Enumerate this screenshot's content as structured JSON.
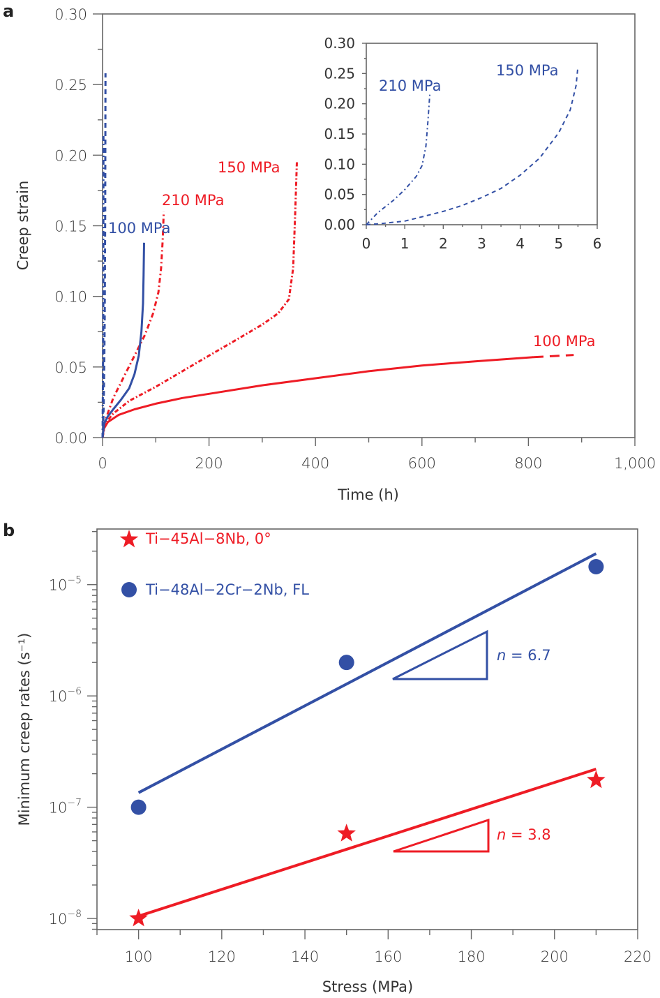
{
  "colors": {
    "red": "#ee1c25",
    "blue": "#3350a5",
    "axis": "#666666",
    "text": "#333333"
  },
  "chart_data": [
    {
      "id": "a",
      "panel_label": "a",
      "type": "line",
      "xlabel": "Time (h)",
      "ylabel": "Creep strain",
      "xlim": [
        0,
        1000
      ],
      "ylim": [
        0,
        0.3
      ],
      "xticks": [
        0,
        200,
        400,
        600,
        800,
        1000
      ],
      "xtick_labels": [
        "0",
        "200",
        "400",
        "600",
        "800",
        "1,000"
      ],
      "yticks": [
        0.0,
        0.05,
        0.1,
        0.15,
        0.2,
        0.25,
        0.3
      ],
      "ytick_labels": [
        "0.00",
        "0.05",
        "0.10",
        "0.15",
        "0.20",
        "0.25",
        "0.30"
      ],
      "grid": false,
      "series": [
        {
          "name": "Ti-45Al-8Nb 100 MPa",
          "label": "100 MPa",
          "color": "red",
          "style": "solid",
          "x": [
            0,
            2,
            10,
            30,
            60,
            100,
            150,
            200,
            300,
            400,
            500,
            600,
            700,
            810
          ],
          "y": [
            0,
            0.006,
            0.011,
            0.016,
            0.02,
            0.024,
            0.028,
            0.031,
            0.037,
            0.042,
            0.047,
            0.051,
            0.054,
            0.057
          ],
          "extrapolated": {
            "x": [
              810,
              885
            ],
            "y": [
              0.057,
              0.0585
            ],
            "style": "dashed"
          }
        },
        {
          "name": "Ti-45Al-8Nb 150 MPa",
          "label": "150 MPa",
          "color": "red",
          "style": "dashed-noisy",
          "x": [
            0,
            5,
            20,
            50,
            100,
            150,
            200,
            250,
            300,
            330,
            350,
            358,
            362,
            365
          ],
          "y": [
            0,
            0.01,
            0.017,
            0.026,
            0.036,
            0.047,
            0.058,
            0.069,
            0.08,
            0.088,
            0.098,
            0.12,
            0.16,
            0.195
          ]
        },
        {
          "name": "Ti-45Al-8Nb 210 MPa",
          "label": "210 MPa",
          "color": "red",
          "style": "dashdot",
          "x": [
            0,
            5,
            20,
            40,
            60,
            80,
            95,
            105,
            110,
            113,
            115
          ],
          "y": [
            0,
            0.012,
            0.028,
            0.043,
            0.058,
            0.073,
            0.088,
            0.103,
            0.12,
            0.14,
            0.16
          ]
        },
        {
          "name": "Ti-48Al-2Cr-2Nb 100 MPa",
          "label": "100 MPa",
          "color": "blue",
          "style": "solid",
          "x": [
            0,
            3,
            10,
            20,
            35,
            50,
            60,
            68,
            73,
            76,
            77,
            78
          ],
          "y": [
            0,
            0.01,
            0.015,
            0.02,
            0.027,
            0.035,
            0.045,
            0.058,
            0.075,
            0.095,
            0.115,
            0.138
          ]
        },
        {
          "name": "Ti-48Al-2Cr-2Nb 150 MPa",
          "label": "150 MPa",
          "color": "blue",
          "style": "dashed",
          "x": [
            0,
            1,
            2,
            3,
            4,
            5,
            5.5
          ],
          "y": [
            0,
            0.005,
            0.02,
            0.045,
            0.085,
            0.16,
            0.258
          ]
        },
        {
          "name": "Ti-48Al-2Cr-2Nb 210 MPa",
          "label": "210 MPa",
          "color": "blue",
          "style": "dashdot",
          "x": [
            0,
            0.5,
            1.0,
            1.4,
            1.55,
            1.65
          ],
          "y": [
            0,
            0.03,
            0.06,
            0.095,
            0.15,
            0.215
          ]
        }
      ],
      "annotations": [
        {
          "text": "150 MPa",
          "color": "red",
          "series": "Ti-45Al-8Nb 150 MPa"
        },
        {
          "text": "210 MPa",
          "color": "red",
          "series": "Ti-45Al-8Nb 210 MPa"
        },
        {
          "text": "100 MPa",
          "color": "blue",
          "series": "Ti-48Al-2Cr-2Nb 100 MPa"
        },
        {
          "text": "100 MPa",
          "color": "red",
          "series": "Ti-45Al-8Nb 100 MPa"
        }
      ],
      "inset": {
        "type": "line",
        "xlim": [
          0,
          6
        ],
        "ylim": [
          0,
          0.3
        ],
        "xticks": [
          0,
          1,
          2,
          3,
          4,
          5,
          6
        ],
        "xtick_labels": [
          "0",
          "1",
          "2",
          "3",
          "4",
          "5",
          "6"
        ],
        "yticks": [
          0.0,
          0.05,
          0.1,
          0.15,
          0.2,
          0.25,
          0.3
        ],
        "ytick_labels": [
          "0.00",
          "0.05",
          "0.10",
          "0.15",
          "0.20",
          "0.25",
          "0.30"
        ],
        "series": [
          {
            "name": "Ti-48Al-2Cr-2Nb 210 MPa",
            "label": "210 MPa",
            "color": "blue",
            "style": "dashdot",
            "x": [
              0,
              0.3,
              0.7,
              1.0,
              1.3,
              1.45,
              1.55,
              1.6,
              1.65
            ],
            "y": [
              0,
              0.02,
              0.04,
              0.058,
              0.08,
              0.098,
              0.13,
              0.17,
              0.215
            ]
          },
          {
            "name": "Ti-48Al-2Cr-2Nb 150 MPa",
            "label": "150 MPa",
            "color": "blue",
            "style": "dashed",
            "x": [
              0,
              0.4,
              1.0,
              1.5,
              2.0,
              2.5,
              3.0,
              3.5,
              4.0,
              4.5,
              5.0,
              5.3,
              5.45,
              5.5
            ],
            "y": [
              0,
              0.002,
              0.006,
              0.014,
              0.022,
              0.032,
              0.045,
              0.06,
              0.082,
              0.11,
              0.152,
              0.19,
              0.23,
              0.262
            ]
          }
        ]
      }
    },
    {
      "id": "b",
      "panel_label": "b",
      "type": "scatter",
      "xlabel": "Stress (MPa)",
      "ylabel": "Minimum creep rates (s⁻¹)",
      "xlim": [
        90,
        220
      ],
      "ylim_log10": [
        -8.1,
        -4.5
      ],
      "yscale": "log",
      "xticks": [
        100,
        120,
        140,
        160,
        180,
        200,
        220
      ],
      "xtick_labels": [
        "100",
        "120",
        "140",
        "160",
        "180",
        "200",
        "220"
      ],
      "yticks_log10": [
        -8,
        -7,
        -6,
        -5
      ],
      "ytick_bases": [
        "10",
        "10",
        "10",
        "10"
      ],
      "ytick_exponents": [
        "−8",
        "−7",
        "−6",
        "−5"
      ],
      "grid": false,
      "legend_position": "top-left",
      "series": [
        {
          "name": "Ti−45Al−8Nb, 0°",
          "marker": "star",
          "color": "red",
          "x": [
            100,
            150,
            210
          ],
          "y": [
            1e-08,
            5.8e-08,
            1.75e-07
          ],
          "fit": {
            "x": [
              100,
              210
            ],
            "y": [
              1.05e-08,
              2.2e-07
            ],
            "n": "3.8"
          }
        },
        {
          "name": "Ti−48Al−2Cr−2Nb, FL",
          "marker": "circle",
          "color": "blue",
          "x": [
            100,
            150,
            210
          ],
          "y": [
            1e-07,
            2e-06,
            1.45e-05
          ],
          "fit": {
            "x": [
              100,
              210
            ],
            "y": [
              1.35e-07,
              1.9e-05
            ],
            "n": "6.7"
          }
        }
      ],
      "slope_annotations": [
        {
          "italic": "n",
          "rest": " = 6.7",
          "color": "blue"
        },
        {
          "italic": "n",
          "rest": " = 3.8",
          "color": "red"
        }
      ]
    }
  ]
}
